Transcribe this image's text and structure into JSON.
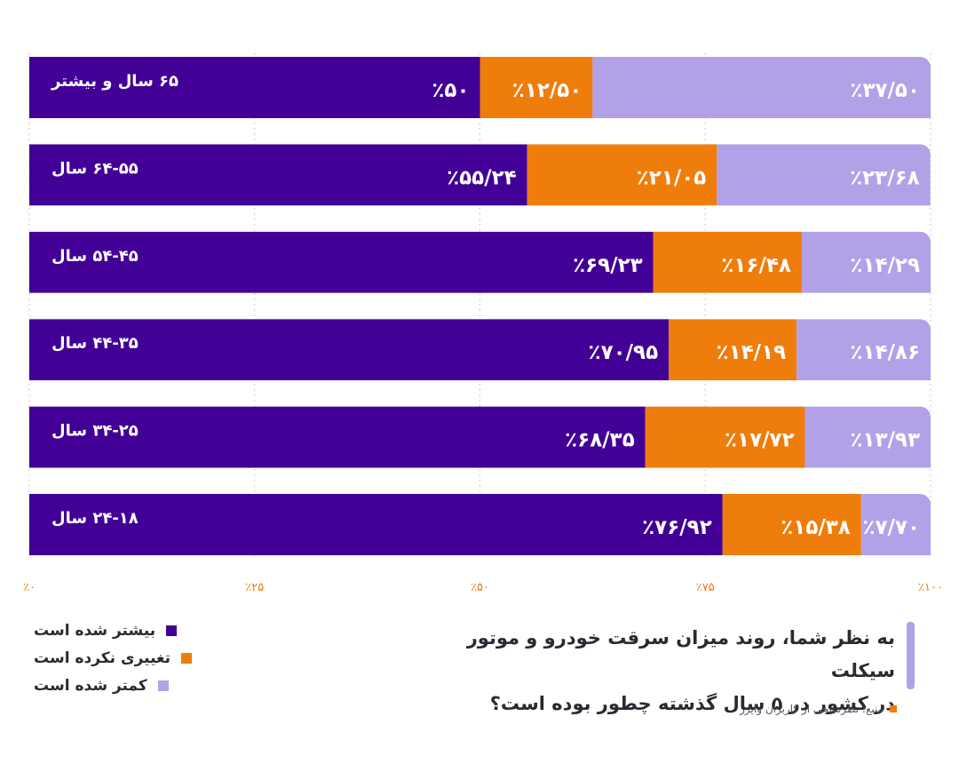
{
  "chart_data": {
    "type": "bar",
    "orientation": "horizontal",
    "stacked": true,
    "percent": true,
    "categories": [
      "۶۵ سال و بیشتر",
      "۶۴-۵۵ سال",
      "۵۴-۴۵ سال",
      "۴۴-۳۵ سال",
      "۳۴-۲۵ سال",
      "۲۴-۱۸ سال"
    ],
    "series": [
      {
        "name": "بیشتر شده است",
        "color": "#420096",
        "values": [
          50,
          55.24,
          69.23,
          70.95,
          68.35,
          76.92
        ],
        "labels": [
          "٪۵۰",
          "٪۵۵/۲۴",
          "٪۶۹/۲۳",
          "٪۷۰/۹۵",
          "٪۶۸/۳۵",
          "٪۷۶/۹۲"
        ]
      },
      {
        "name": "تغییری نکرده است",
        "color": "#ef7d0b",
        "values": [
          12.5,
          21.05,
          16.48,
          14.19,
          17.72,
          15.38
        ],
        "labels": [
          "٪۱۲/۵۰",
          "٪۲۱/۰۵",
          "٪۱۶/۴۸",
          "٪۱۴/۱۹",
          "٪۱۷/۷۲",
          "٪۱۵/۳۸"
        ]
      },
      {
        "name": "کمتر شده است",
        "color": "#b2a1e7",
        "values": [
          37.5,
          23.68,
          14.29,
          14.86,
          13.93,
          7.7
        ],
        "labels": [
          "٪۳۷/۵۰",
          "٪۲۳/۶۸",
          "٪۱۴/۲۹",
          "٪۱۴/۸۶",
          "٪۱۳/۹۳",
          "٪۷/۷۰"
        ]
      }
    ],
    "xlim": [
      0,
      100
    ],
    "x_ticks": [
      0,
      25,
      50,
      75,
      100
    ],
    "x_tick_labels": [
      "٪۰",
      "٪۲۵",
      "٪۵۰",
      "٪۷۵",
      "٪۱۰۰"
    ],
    "grid": true,
    "legend_position": "bottom-left",
    "title": "به نظر شما، روند میزان سرقت خودرو و موتور سیکلت در کشور در ۵ سال گذشته چطور بوده است؟"
  },
  "question": {
    "line1": "به نظر شما، روند میزان سرقت خودرو و موتور سیکلت",
    "line2": "در کشور در ۵ سال گذشته چطور بوده است؟"
  },
  "source_text": "منبع: نظرسنجی از کاربران وایزر",
  "colors": {
    "accent_bar": "#b2a1e7",
    "source_square": "#ef7d0b",
    "grid": "#c8c8c8",
    "tick_text": "#ef7d0b"
  }
}
